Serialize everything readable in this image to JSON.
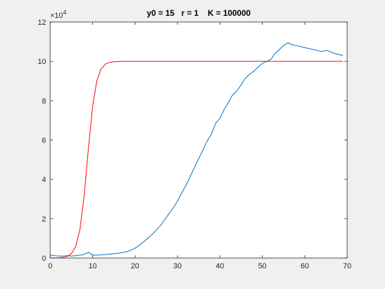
{
  "chart_data": {
    "type": "line",
    "title": "y0 = 15   r = 1    K = 100000",
    "xlabel": "",
    "ylabel": "",
    "xlim": [
      0,
      70
    ],
    "ylim": [
      0,
      12
    ],
    "xticks": [
      0,
      10,
      20,
      30,
      40,
      50,
      60,
      70
    ],
    "yticks": [
      0,
      2,
      4,
      6,
      8,
      10,
      12
    ],
    "xtick_labels": [
      "0",
      "10",
      "20",
      "30",
      "40",
      "50",
      "60",
      "70"
    ],
    "ytick_labels": [
      "0",
      "2",
      "4",
      "6",
      "8",
      "10",
      "12"
    ],
    "y_multiplier_base": "×10",
    "y_multiplier_exp": "4",
    "grid": false,
    "legend": "none",
    "series": [
      {
        "color": "#0072BD",
        "x": [
          0,
          1,
          2,
          3,
          4,
          5,
          6,
          7,
          8,
          9,
          10,
          11,
          12,
          13,
          14,
          15,
          16,
          17,
          18,
          19,
          20,
          21,
          22,
          23,
          24,
          25,
          26,
          27,
          28,
          29,
          30,
          31,
          32,
          33,
          34,
          35,
          36,
          37,
          38,
          39,
          40,
          41,
          42,
          43,
          44,
          45,
          46,
          47,
          48,
          49,
          50,
          51,
          52,
          53,
          54,
          55,
          56,
          57,
          58,
          59,
          60,
          61,
          62,
          63,
          64,
          65,
          66,
          67,
          68,
          69
        ],
        "y": [
          0.15,
          0.12,
          0.1,
          0.1,
          0.12,
          0.1,
          0.12,
          0.15,
          0.18,
          0.3,
          0.15,
          0.15,
          0.16,
          0.18,
          0.2,
          0.22,
          0.24,
          0.28,
          0.32,
          0.4,
          0.5,
          0.65,
          0.82,
          1.0,
          1.2,
          1.42,
          1.65,
          1.95,
          2.25,
          2.55,
          2.9,
          3.3,
          3.7,
          4.15,
          4.6,
          5.05,
          5.5,
          5.95,
          6.3,
          6.85,
          7.1,
          7.55,
          7.9,
          8.3,
          8.5,
          8.8,
          9.15,
          9.35,
          9.5,
          9.7,
          9.9,
          10.0,
          10.1,
          10.4,
          10.6,
          10.8,
          10.95,
          10.85,
          10.8,
          10.75,
          10.7,
          10.65,
          10.6,
          10.55,
          10.5,
          10.55,
          10.5,
          10.4,
          10.35,
          10.3
        ]
      },
      {
        "color": "#FF0000",
        "x": [
          0,
          1,
          2,
          3,
          4,
          5,
          6,
          7,
          8,
          9,
          10,
          11,
          12,
          13,
          14,
          15,
          16,
          17,
          18,
          19,
          20,
          25,
          30,
          35,
          40,
          45,
          50,
          55,
          60,
          65,
          69
        ],
        "y": [
          0.0015,
          0.0041,
          0.011,
          0.03,
          0.081,
          0.22,
          0.58,
          1.44,
          3.14,
          5.55,
          7.72,
          9.02,
          9.62,
          9.86,
          9.95,
          9.98,
          9.99,
          10.0,
          10.0,
          10.0,
          10.0,
          10.0,
          10.0,
          10.0,
          10.0,
          10.0,
          10.0,
          10.0,
          10.0,
          10.0,
          10.0
        ]
      }
    ]
  }
}
